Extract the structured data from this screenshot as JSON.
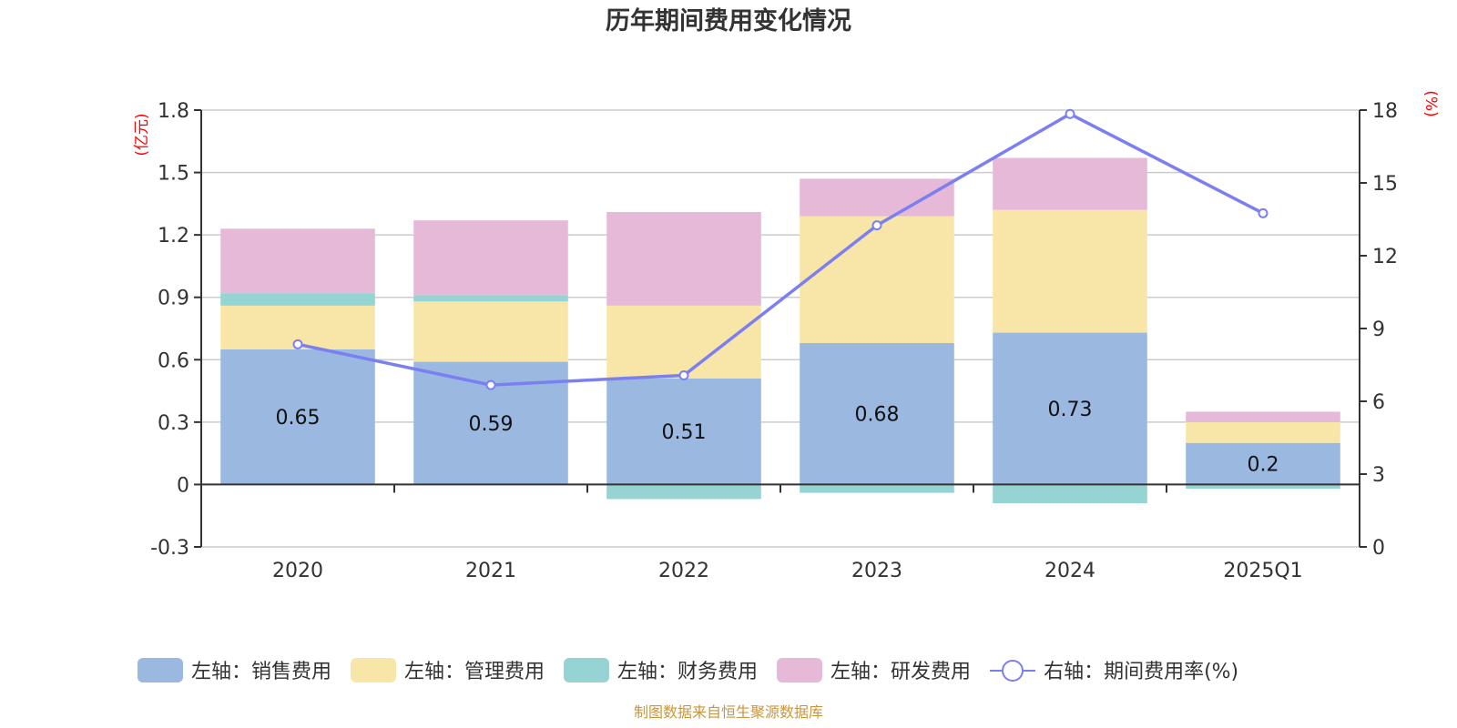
{
  "title": "历年期间费用变化情况",
  "source_note": "制图数据来自恒生聚源数据库",
  "colors": {
    "sales": "#9bb8e1",
    "admin": "#f8e6a9",
    "finance": "#96d3d3",
    "rnd": "#e7b9d9",
    "rate_line": "#7b7ff0",
    "axis_unit": "#ff0000",
    "source_note": "#c8963c",
    "grid": "#cccccc",
    "axis": "#333333"
  },
  "chart_data": {
    "type": "bar",
    "stacked": true,
    "title": "历年期间费用变化情况",
    "categories": [
      "2020",
      "2021",
      "2022",
      "2023",
      "2024",
      "2025Q1"
    ],
    "series": [
      {
        "name": "左轴：销售费用",
        "key": "sales",
        "axis": "left",
        "type": "bar",
        "values": [
          0.65,
          0.59,
          0.51,
          0.68,
          0.73,
          0.2
        ],
        "labels": [
          "0.65",
          "0.59",
          "0.51",
          "0.68",
          "0.73",
          "0.2"
        ]
      },
      {
        "name": "左轴：管理费用",
        "key": "admin",
        "axis": "left",
        "type": "bar",
        "values": [
          0.21,
          0.29,
          0.35,
          0.61,
          0.59,
          0.1
        ]
      },
      {
        "name": "左轴：财务费用",
        "key": "finance",
        "axis": "left",
        "type": "bar",
        "values": [
          0.06,
          0.03,
          -0.07,
          -0.04,
          -0.09,
          -0.02
        ]
      },
      {
        "name": "左轴：研发费用",
        "key": "rnd",
        "axis": "left",
        "type": "bar",
        "values": [
          0.31,
          0.36,
          0.45,
          0.18,
          0.25,
          0.05
        ]
      },
      {
        "name": "右轴：期间费用率(%)",
        "key": "rate_line",
        "axis": "right",
        "type": "line",
        "values": [
          8.35,
          6.67,
          7.07,
          13.25,
          17.84,
          13.75
        ]
      }
    ],
    "left_axis": {
      "label": "(亿元)",
      "ylim": [
        -0.3,
        1.8
      ],
      "ticks": [
        -0.3,
        0,
        0.3,
        0.6,
        0.9,
        1.2,
        1.5,
        1.8
      ],
      "tick_labels": [
        "-0.3",
        "0",
        "0.3",
        "0.6",
        "0.9",
        "1.2",
        "1.5",
        "1.8"
      ]
    },
    "right_axis": {
      "label": "(%)",
      "ylim": [
        0,
        18
      ],
      "ticks": [
        0,
        3,
        6,
        9,
        12,
        15,
        18
      ],
      "tick_labels": [
        "0",
        "3",
        "6",
        "9",
        "12",
        "15",
        "18"
      ]
    },
    "grid": true,
    "legend_position": "bottom"
  }
}
